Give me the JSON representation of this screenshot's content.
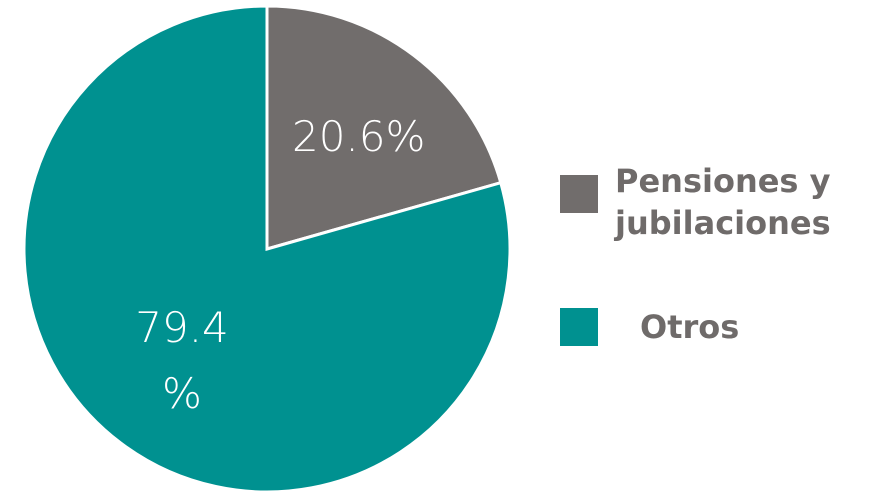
{
  "chart_data": {
    "type": "pie",
    "categories": [
      "Pensiones y jubilaciones",
      "Otros"
    ],
    "values": [
      20.6,
      79.4
    ],
    "value_labels": [
      "20.6%",
      "79.4 %"
    ],
    "colors": [
      "#716d6c",
      "#009190"
    ]
  }
}
